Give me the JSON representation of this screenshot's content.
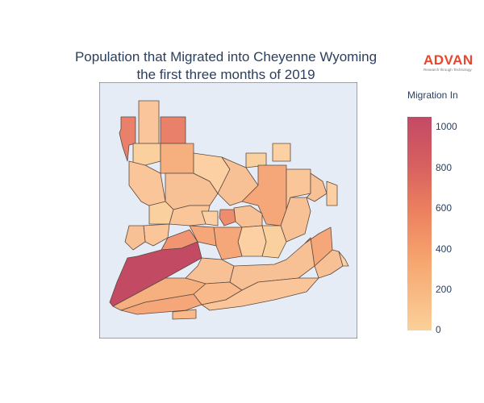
{
  "title": {
    "line1": "Population that Migrated into Cheyenne Wyoming",
    "line2": "the first three months of 2019"
  },
  "logo": {
    "brand": "ADVAN",
    "tagline": "Research through Technology"
  },
  "colorbar": {
    "title": "Migration In",
    "min": 0,
    "max": 1100,
    "ticks": [
      "0",
      "200",
      "400",
      "600",
      "800",
      "1000"
    ],
    "colorscale": [
      "#fad09a",
      "#f7a66f",
      "#eb7f5e",
      "#d65f60",
      "#c34a65"
    ]
  },
  "map": {
    "background": "#e5ecf6",
    "border_color": "#4d4d4d"
  }
}
